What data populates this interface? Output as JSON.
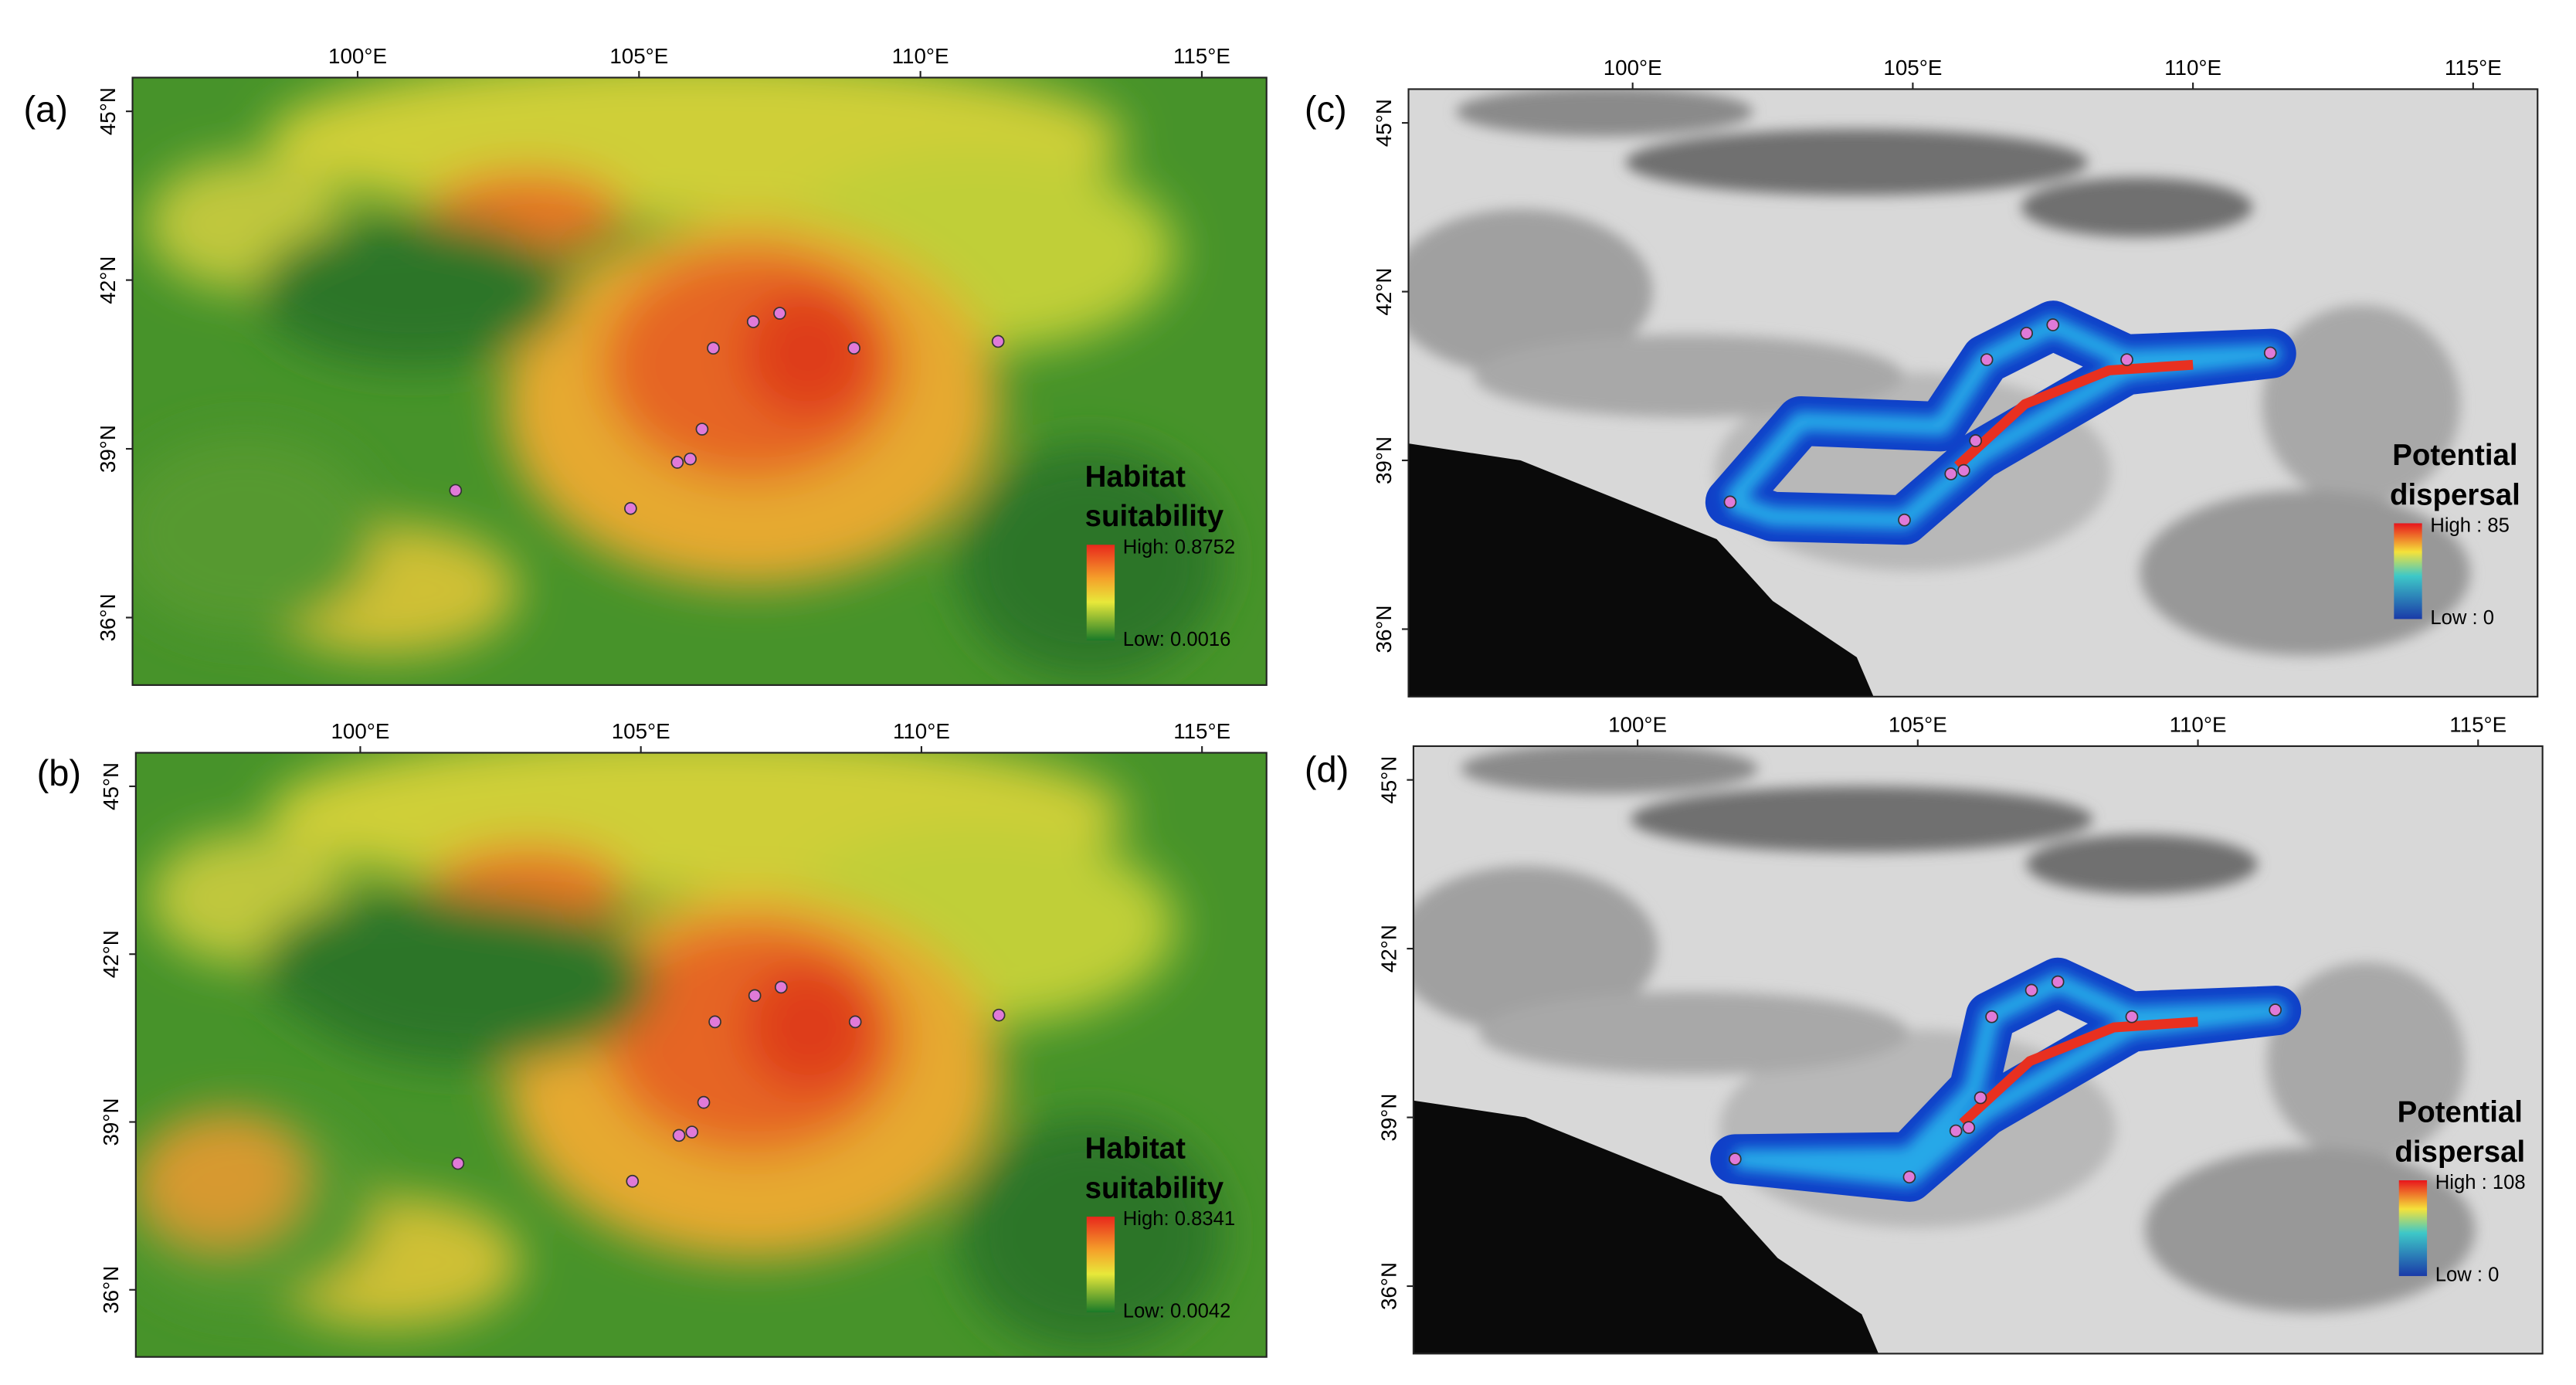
{
  "map": {
    "xlim": [
      96,
      116.15
    ],
    "ylim": [
      34.8,
      45.6
    ],
    "xticks": [
      {
        "value": 100,
        "label": "100°E"
      },
      {
        "value": 105,
        "label": "105°E"
      },
      {
        "value": 110,
        "label": "110°E"
      },
      {
        "value": 115,
        "label": "115°E"
      }
    ],
    "yticks": [
      {
        "value": 36,
        "label": "36°N"
      },
      {
        "value": 39,
        "label": "39°N"
      },
      {
        "value": 42,
        "label": "42°N"
      },
      {
        "value": 45,
        "label": "45°N"
      }
    ],
    "points": [
      {
        "lon": 101.74,
        "lat": 38.26
      },
      {
        "lon": 104.85,
        "lat": 37.94
      },
      {
        "lon": 105.68,
        "lat": 38.76
      },
      {
        "lon": 105.91,
        "lat": 38.82
      },
      {
        "lon": 106.12,
        "lat": 39.35
      },
      {
        "lon": 106.32,
        "lat": 40.79
      },
      {
        "lon": 107.03,
        "lat": 41.26
      },
      {
        "lon": 107.5,
        "lat": 41.41
      },
      {
        "lon": 108.82,
        "lat": 40.79
      },
      {
        "lon": 111.38,
        "lat": 40.91
      }
    ]
  },
  "panels": [
    {
      "label": "(a)",
      "type": "suitability",
      "legend_title": [
        "Habitat",
        "suitability"
      ],
      "legend_high": "High: 0.8752",
      "legend_low": "Low: 0.0016"
    },
    {
      "label": "(b)",
      "type": "suitability",
      "legend_title": [
        "Habitat",
        "suitability"
      ],
      "legend_high": "High: 0.8341",
      "legend_low": "Low: 0.0042"
    },
    {
      "label": "(c)",
      "type": "dispersal",
      "legend_title": [
        "Potential",
        "dispersal"
      ],
      "legend_high": "High : 85",
      "legend_low": "Low : 0"
    },
    {
      "label": "(d)",
      "type": "dispersal",
      "legend_title": [
        "Potential",
        "dispersal"
      ],
      "legend_high": "High : 108",
      "legend_low": "Low : 0"
    }
  ]
}
